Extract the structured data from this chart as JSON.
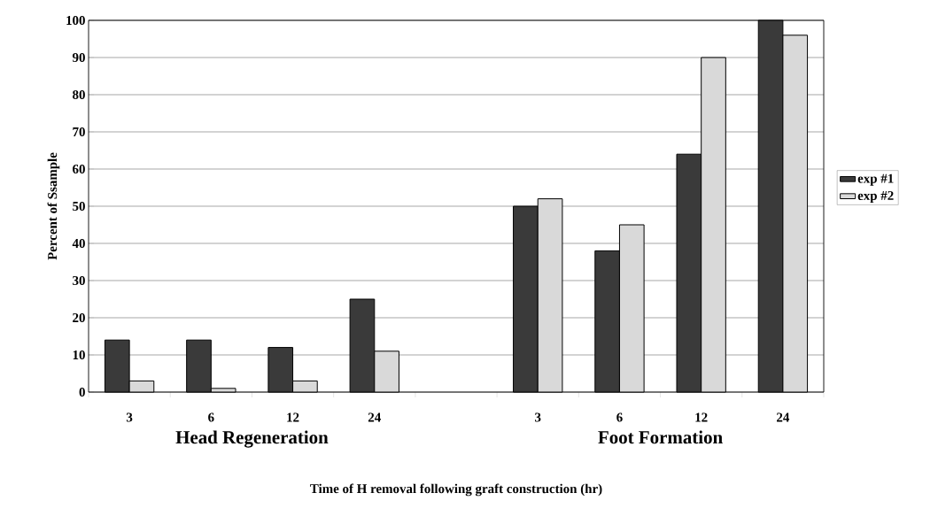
{
  "chart_data": {
    "type": "bar",
    "xlabel": "Time of H removal following graft construction (hr)",
    "ylabel": "Percent of Ssample",
    "categories": [
      "3",
      "6",
      "12",
      "24",
      null,
      "3",
      "6",
      "12",
      "24"
    ],
    "series": [
      {
        "name": "exp  #1",
        "color": "#3a3a3a",
        "values": [
          14,
          14,
          12,
          25,
          null,
          50,
          38,
          64,
          100
        ]
      },
      {
        "name": "exp  #2",
        "color": "#d9d9d9",
        "values": [
          3,
          1,
          3,
          11,
          null,
          52,
          45,
          90,
          96
        ]
      }
    ],
    "annotations": [
      "Head Regeneration",
      "Foot Formation"
    ],
    "ylim": [
      0,
      100
    ],
    "yticks": [
      0,
      10,
      20,
      30,
      40,
      50,
      60,
      70,
      80,
      90,
      100
    ],
    "grid": "y",
    "legend": "right"
  }
}
